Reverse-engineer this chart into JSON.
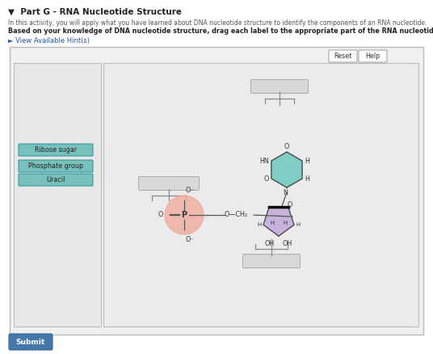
{
  "title": "▼  Part G - RNA Nucleotide Structure",
  "subtitle1": "In this activity, you will apply what you have learned about DNA nucleotide structure to identify the components of an RNA nucleotide.",
  "subtitle2": "Based on your knowledge of DNA nucleotide structure, drag each label to the appropriate part of the RNA nucleotide.",
  "hint_text": "► View Available Hint(s)",
  "labels": [
    "Ribose sugar",
    "Phosphate group",
    "Uracil"
  ],
  "phosphate_color": "#f0a898",
  "sugar_color": "#c0a8d8",
  "base_color": "#6ec8c0",
  "box_fill": "#d8d8d8",
  "box_edge": "#aaaaaa",
  "reset_btn": "Reset",
  "help_btn": "Help",
  "submit_btn": "Submit",
  "panel_bg": "#f0f0f0",
  "left_panel_bg": "#e8e8e8",
  "right_panel_bg": "#ebebeb"
}
